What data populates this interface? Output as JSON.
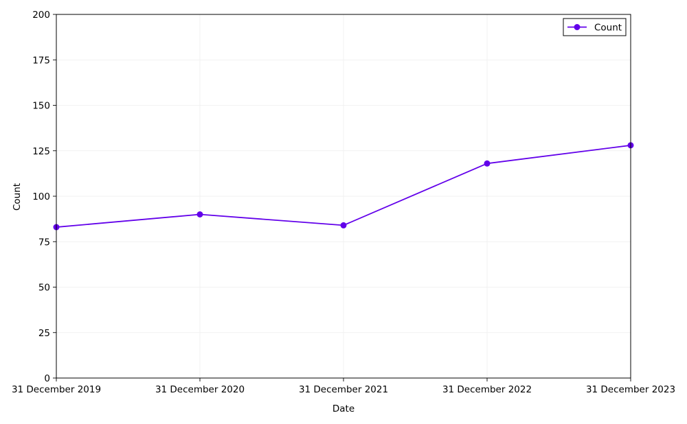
{
  "chart_data": {
    "type": "line",
    "title": "",
    "xlabel": "Date",
    "ylabel": "Count",
    "x": [
      "2019-12-31",
      "2020-12-31",
      "2021-12-31",
      "2022-12-31",
      "2023-12-31"
    ],
    "x_tick_labels": [
      "31 December 2019",
      "31 December 2020",
      "31 December 2021",
      "31 December 2022",
      "31 December 2023"
    ],
    "series": [
      {
        "name": "Count",
        "values": [
          83,
          90,
          84,
          118,
          128
        ],
        "color": "#6200ea",
        "marker": "circle"
      }
    ],
    "ylim": [
      0,
      200
    ],
    "y_ticks": [
      0,
      25,
      50,
      75,
      100,
      125,
      150,
      175,
      200
    ],
    "grid": true,
    "legend_position": "top-right"
  }
}
